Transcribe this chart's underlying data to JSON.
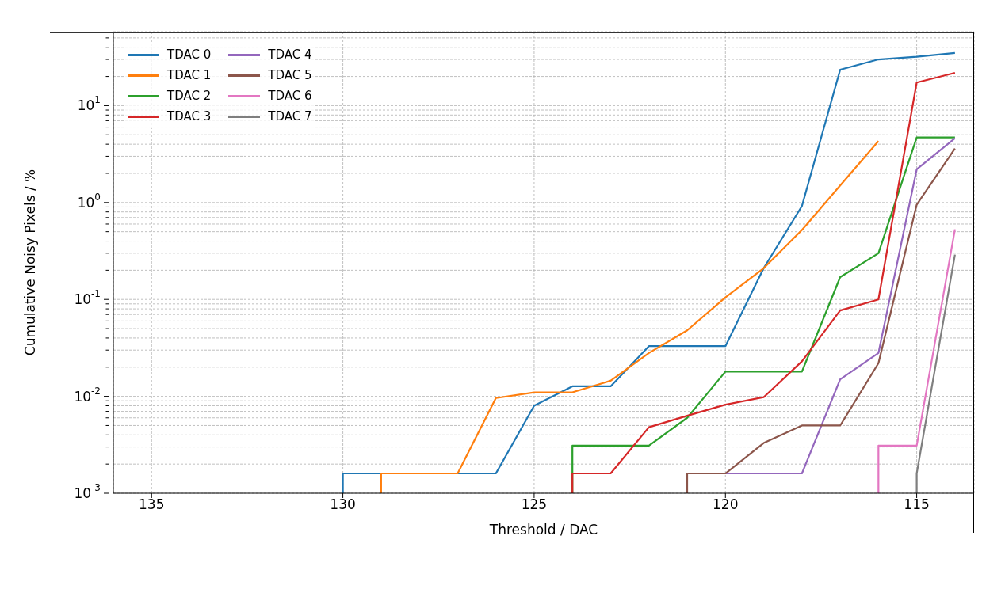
{
  "chart_data": {
    "type": "line",
    "xlabel": "Threshold / DAC",
    "ylabel": "Cumulative Noisy Pixels / %",
    "log": "y",
    "grid": true,
    "legend": "top left",
    "marker": "none",
    "line_style": "solid",
    "xlim": [
      136,
      113.5
    ],
    "xticks": [
      135,
      130,
      125,
      120,
      115
    ],
    "ylim": [
      0.001,
      58
    ],
    "yticks": [
      {
        "value": 0.001,
        "label": "10$^{-3}$"
      },
      {
        "value": 0.002,
        "label": null
      },
      {
        "value": 0.003,
        "label": null
      },
      {
        "value": 0.004,
        "label": null
      },
      {
        "value": 0.005,
        "label": null
      },
      {
        "value": 0.006,
        "label": null
      },
      {
        "value": 0.007,
        "label": null
      },
      {
        "value": 0.008,
        "label": null
      },
      {
        "value": 0.009,
        "label": null
      },
      {
        "value": 0.01,
        "label": "10$^{-2}$"
      },
      {
        "value": 0.02,
        "label": null
      },
      {
        "value": 0.03,
        "label": null
      },
      {
        "value": 0.04,
        "label": null
      },
      {
        "value": 0.05,
        "label": null
      },
      {
        "value": 0.06,
        "label": null
      },
      {
        "value": 0.07,
        "label": null
      },
      {
        "value": 0.08,
        "label": null
      },
      {
        "value": 0.09,
        "label": null
      },
      {
        "value": 0.1,
        "label": "10$^{-1}$"
      },
      {
        "value": 0.2,
        "label": null
      },
      {
        "value": 0.3,
        "label": null
      },
      {
        "value": 0.4,
        "label": null
      },
      {
        "value": 0.5,
        "label": null
      },
      {
        "value": 0.6,
        "label": null
      },
      {
        "value": 0.7,
        "label": null
      },
      {
        "value": 0.8,
        "label": null
      },
      {
        "value": 0.9,
        "label": null
      },
      {
        "value": 1,
        "label": "10$^{0}$"
      },
      {
        "value": 2,
        "label": null
      },
      {
        "value": 3,
        "label": null
      },
      {
        "value": 4,
        "label": null
      },
      {
        "value": 5,
        "label": null
      },
      {
        "value": 6,
        "label": null
      },
      {
        "value": 7,
        "label": null
      },
      {
        "value": 8,
        "label": null
      },
      {
        "value": 9,
        "label": null
      },
      {
        "value": 10,
        "label": "10$^{1}$"
      },
      {
        "value": 20,
        "label": null
      },
      {
        "value": 30,
        "label": null
      },
      {
        "value": 40,
        "label": null
      },
      {
        "value": 50,
        "label": null
      }
    ],
    "series": [
      {
        "name": "TDAC 0",
        "color": "#1f77b4",
        "x": [
          130,
          130,
          129,
          127,
          126,
          125,
          124,
          123,
          122,
          121,
          120,
          119,
          118,
          117,
          116,
          115,
          114
        ],
        "values": [
          0.001,
          0.0016,
          0.0016,
          0.0016,
          0.0016,
          0.008,
          0.0127,
          0.0127,
          0.033,
          0.033,
          0.033,
          0.21,
          0.92,
          23.5,
          30,
          32,
          35
        ]
      },
      {
        "name": "TDAC 1",
        "color": "#ff7f0e",
        "x": [
          129,
          129,
          128,
          127,
          126,
          125,
          124,
          123,
          122,
          121,
          120,
          119,
          118,
          117,
          116
        ],
        "values": [
          0.001,
          0.0016,
          0.0016,
          0.0016,
          0.0096,
          0.011,
          0.011,
          0.0145,
          0.028,
          0.048,
          0.105,
          0.21,
          0.52,
          1.5,
          4.3
        ]
      },
      {
        "name": "TDAC 2",
        "color": "#2ca02c",
        "x": [
          124,
          124,
          123,
          122,
          121,
          120,
          119,
          118,
          117,
          116,
          115,
          114
        ],
        "values": [
          0.001,
          0.0031,
          0.0031,
          0.0031,
          0.006,
          0.018,
          0.018,
          0.018,
          0.17,
          0.3,
          4.7,
          4.7
        ]
      },
      {
        "name": "TDAC 3",
        "color": "#d62728",
        "x": [
          124,
          124,
          123,
          122,
          121,
          120,
          119,
          118,
          117,
          116,
          115,
          114
        ],
        "values": [
          0.001,
          0.0016,
          0.0016,
          0.0048,
          0.0063,
          0.0082,
          0.0098,
          0.023,
          0.077,
          0.1,
          17.3,
          21.8
        ]
      },
      {
        "name": "TDAC 4",
        "color": "#9467bd",
        "x": [
          120,
          119,
          118,
          117,
          116,
          115,
          114
        ],
        "values": [
          0.0016,
          0.0016,
          0.0016,
          0.015,
          0.028,
          2.2,
          4.6
        ]
      },
      {
        "name": "TDAC 5",
        "color": "#8c564b",
        "x": [
          121,
          121,
          120,
          119,
          118,
          117,
          116,
          115,
          114
        ],
        "values": [
          0.001,
          0.0016,
          0.0016,
          0.0033,
          0.005,
          0.005,
          0.022,
          0.95,
          3.6
        ]
      },
      {
        "name": "TDAC 6",
        "color": "#e377c2",
        "x": [
          116,
          116,
          115,
          114
        ],
        "values": [
          0.001,
          0.0031,
          0.0031,
          0.53
        ]
      },
      {
        "name": "TDAC 7",
        "color": "#7f7f7f",
        "x": [
          115,
          115,
          114
        ],
        "values": [
          0.001,
          0.0016,
          0.29
        ]
      }
    ]
  }
}
